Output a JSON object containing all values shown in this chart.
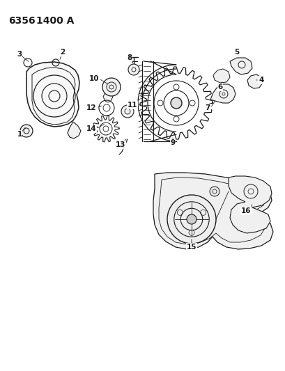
{
  "title": "6356 1400 A",
  "title_fontsize": 10,
  "bg_color": "#ffffff",
  "line_color": "#1a1a1a",
  "label_color": "#1a1a1a",
  "label_fontsize": 7.5,
  "fig_w": 4.1,
  "fig_h": 5.33,
  "dpi": 100
}
